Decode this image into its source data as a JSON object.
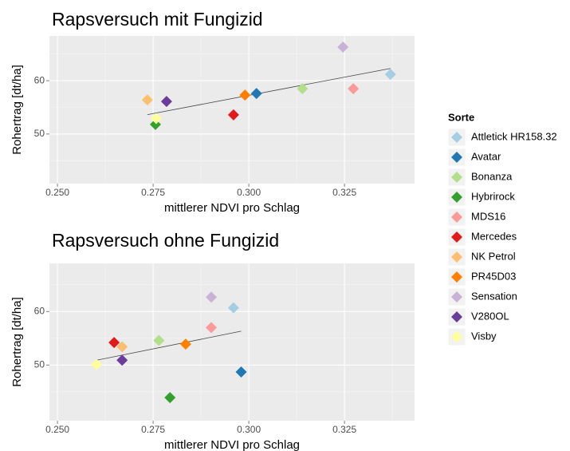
{
  "chart_data": [
    {
      "type": "scatter",
      "title": "Rapsversuch mit Fungizid",
      "xlabel": "mittlerer NDVI pro Schlag",
      "ylabel": "Rohertrag [dt/ha]",
      "x": [
        0.337,
        0.302,
        0.314,
        0.2756,
        0.3273,
        0.296,
        0.2735,
        0.299,
        0.3246,
        0.2785,
        0.2758
      ],
      "values": [
        61.2,
        57.6,
        58.5,
        51.8,
        58.5,
        53.6,
        56.4,
        57.3,
        66.3,
        56.1,
        52.9
      ],
      "xlim": [
        0.2479,
        0.3433
      ],
      "ylim": [
        40.7,
        68.4
      ],
      "xticks": [
        {
          "value": 0.25,
          "label": "0.250"
        },
        {
          "value": 0.275,
          "label": "0.275"
        },
        {
          "value": 0.3,
          "label": "0.300"
        },
        {
          "value": 0.325,
          "label": "0.325"
        }
      ],
      "yticks": [
        50,
        60
      ],
      "grid": true
    },
    {
      "type": "scatter",
      "title": "Rapsversuch ohne Fungizid",
      "xlabel": "mittlerer NDVI pro Schlag",
      "ylabel": "Rohertrag [dt/ha]",
      "x": [
        0.296,
        0.298,
        0.2765,
        0.2794,
        0.2902,
        0.2648,
        0.2669,
        0.2835,
        0.2902,
        0.2669,
        0.2602
      ],
      "values": [
        60.7,
        48.7,
        54.6,
        43.9,
        57.0,
        54.2,
        53.4,
        53.9,
        62.7,
        50.9,
        50.1
      ],
      "xlim": [
        0.2479,
        0.3433
      ],
      "ylim": [
        39.6,
        69
      ],
      "xticks": [
        {
          "value": 0.25,
          "label": "0.250"
        },
        {
          "value": 0.275,
          "label": "0.275"
        },
        {
          "value": 0.3,
          "label": "0.300"
        },
        {
          "value": 0.325,
          "label": "0.325"
        }
      ],
      "yticks": [
        50,
        60
      ],
      "grid": true
    }
  ],
  "legend": {
    "title": "Sorte",
    "names": [
      "Attletick HR158.32",
      "Avatar",
      "Bonanza",
      "Hybrirock",
      "MDS16",
      "Mercedes",
      "NK Petrol",
      "PR45D03",
      "Sensation",
      "V280OL",
      "Visby"
    ],
    "colors": [
      "#a6cee3",
      "#1f78b4",
      "#b2df8a",
      "#33a02c",
      "#fb9a99",
      "#e31a1c",
      "#fdbf6f",
      "#ff7f00",
      "#cab2d6",
      "#6a3d9a",
      "#ffff99"
    ]
  }
}
